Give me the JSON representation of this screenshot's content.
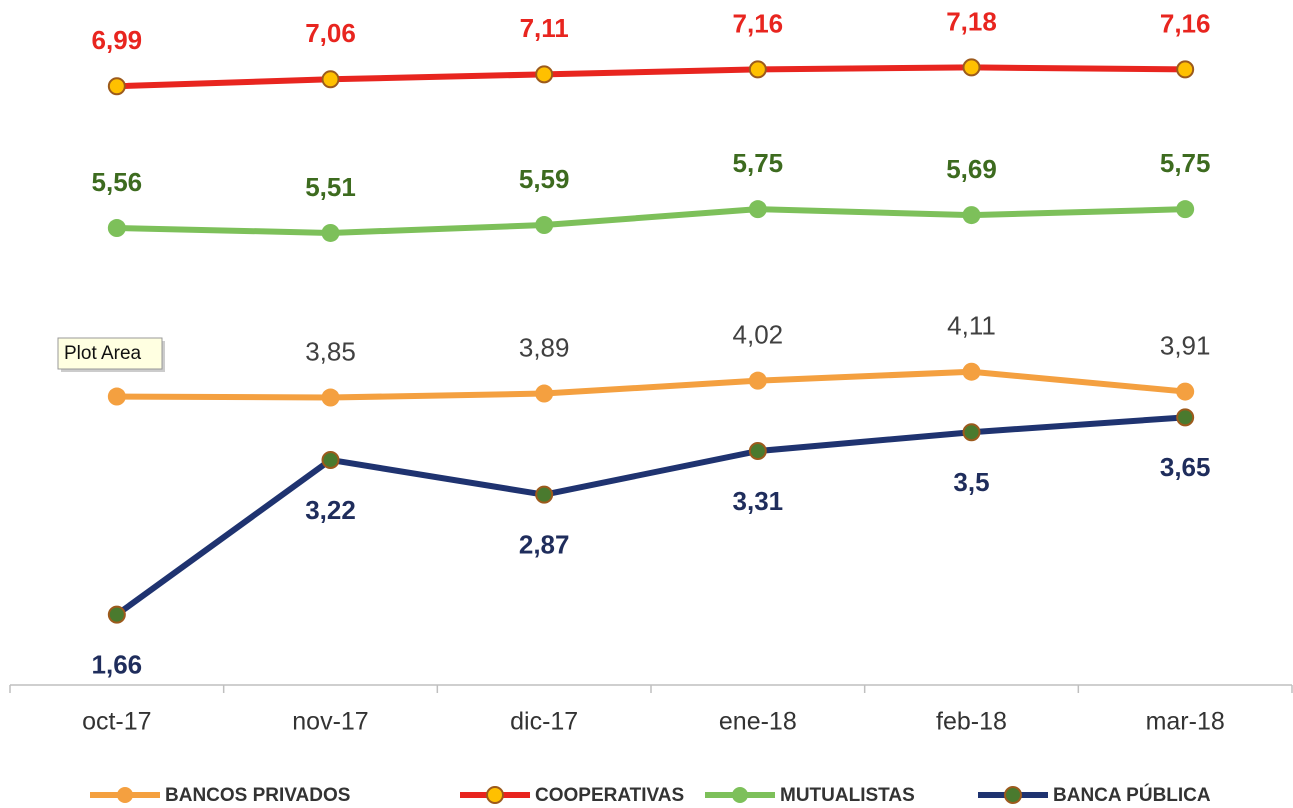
{
  "chart_data": {
    "type": "line",
    "categories": [
      "oct-17",
      "nov-17",
      "dic-17",
      "ene-18",
      "feb-18",
      "mar-18"
    ],
    "ylim": [
      0.95,
      7.86
    ],
    "series": [
      {
        "name": "BANCOS PRIVADOS",
        "color": "#f4a040",
        "marker_color": "#f4a040",
        "label_color": "#404040",
        "label_position": "above",
        "label_bold": false,
        "values": [
          3.86,
          3.85,
          3.89,
          4.02,
          4.11,
          3.91
        ],
        "value_labels": [
          "3,86",
          "3,85",
          "3,89",
          "4,02",
          "4,11",
          "3,91"
        ]
      },
      {
        "name": "COOPERATIVAS",
        "color": "#e8251f",
        "marker_color": "#ffc000",
        "label_color": "#e8251f",
        "label_position": "above",
        "label_bold": true,
        "values": [
          6.99,
          7.06,
          7.11,
          7.16,
          7.18,
          7.16
        ],
        "value_labels": [
          "6,99",
          "7,06",
          "7,11",
          "7,16",
          "7,18",
          "7,16"
        ]
      },
      {
        "name": "MUTUALISTAS",
        "color": "#7dc05a",
        "marker_color": "#7dc05a",
        "label_color": "#3d6b1f",
        "label_position": "above",
        "label_bold": true,
        "values": [
          5.56,
          5.51,
          5.59,
          5.75,
          5.69,
          5.75
        ],
        "value_labels": [
          "5,56",
          "5,51",
          "5,59",
          "5,75",
          "5,69",
          "5,75"
        ]
      },
      {
        "name": "BANCA PÚBLICA",
        "color": "#1f3370",
        "marker_color": "#4a7a2e",
        "label_color": "#1f2d5c",
        "label_position": "below",
        "label_bold": true,
        "values": [
          1.66,
          3.22,
          2.87,
          3.31,
          3.5,
          3.65
        ],
        "value_labels": [
          "1,66",
          "3,22",
          "2,87",
          "3,31",
          "3,5",
          "3,65"
        ]
      }
    ],
    "tooltip": "Plot Area"
  }
}
